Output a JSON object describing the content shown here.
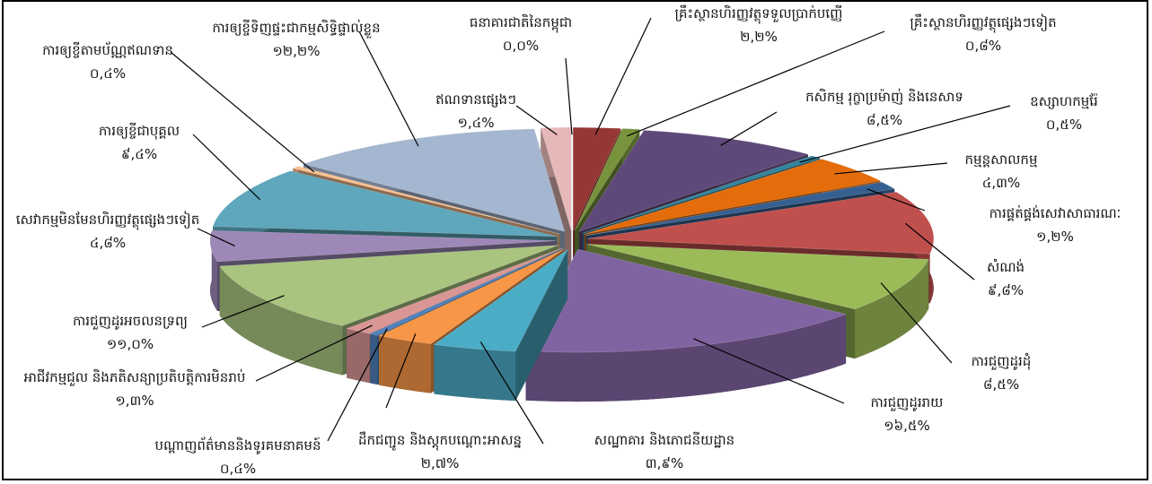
{
  "chart_data": {
    "type": "pie3d",
    "categories": [
      "ធនាគារជាតិនៃកម្ពុជា",
      "គ្រឹះស្ថានហិរញ្ញវត្ថុទទួលប្រាក់បញ្ញើ",
      "គ្រឹះស្ថានហិរញ្ញវត្ថុផ្សេងៗទៀត",
      "កសិកម្ម រុក្ខាប្រម៉ាញ់ និងនេសាទ",
      "ឧស្សាហកម្មរ៉ែ",
      "កម្មន្តសាលកម្ម",
      "ការផ្គត់ផ្គង់សេវាសាធារណៈ",
      "សំណង់",
      "ការជួញដូរដុំ",
      "ការជួញដូររាយ",
      "សណ្ឋាគារ និងភោជនីយដ្ឋាន",
      "ដឹកជញ្ជូន និងស្តុកបណ្តោះអាសន្ន",
      "បណ្តាញព័ត៌មាននិងទូរគមនាគមន៍",
      "អាជីវកម្មជួល និងភតិសន្យាប្រតិបត្តិការមិនរាប់",
      "ការជួញដូរអចលនទ្រព្យ",
      "សេវាកម្មមិនមែនហិរញ្ញវត្ថុផ្សេងៗទៀត",
      "ការឲ្យខ្ចីជាបុគ្គល",
      "ការឲ្យខ្ចីតាមប័ណ្ណឥណទាន",
      "ការឲ្យខ្ចីទិញផ្ទះជាកម្មសិទ្ធិផ្ទាល់ខ្លួន",
      "ឥណទានផ្សេងៗ"
    ],
    "values": [
      0.0,
      2.2,
      0.8,
      8.5,
      0.5,
      4.3,
      1.2,
      9.8,
      8.5,
      16.5,
      3.9,
      2.7,
      0.4,
      1.3,
      11.0,
      4.8,
      9.4,
      0.4,
      12.2,
      1.4
    ],
    "value_labels": [
      "០,០%",
      "២,២%",
      "០,៨%",
      "៨,៥%",
      "០,៥%",
      "៤,៣%",
      "១,២%",
      "៩,៨%",
      "៨,៥%",
      "១៦,៥%",
      "៣,៩%",
      "២,៧%",
      "០,៤%",
      "១,៣%",
      "១១,០%",
      "៤,៨%",
      "៩,៤%",
      "០,៤%",
      "១២,២%",
      "១,៤%"
    ],
    "colors": [
      "#4a4f57",
      "#953735",
      "#77933c",
      "#5f497a",
      "#31849b",
      "#e46c0a",
      "#366092",
      "#c0504d",
      "#9bbb59",
      "#8064a2",
      "#4bacc6",
      "#f79646",
      "#4f81bd",
      "#d99694",
      "#a9c47f",
      "#9d88b7",
      "#5ea7bc",
      "#fac090",
      "#a5b6d0",
      "#e6b9b8"
    ]
  }
}
